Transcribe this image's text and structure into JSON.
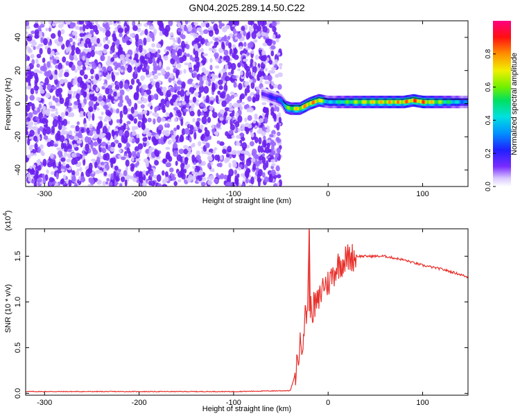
{
  "figure": {
    "title": "GN04.2025.289.14.50.C22"
  },
  "chart_data": [
    {
      "type": "heatmap",
      "xlabel": "Height of straight line (km)",
      "ylabel": "Frequency (Hz)",
      "xlim": [
        -320,
        148
      ],
      "ylim": [
        -50,
        50
      ],
      "x_ticks": [
        "-300",
        "-200",
        "-100",
        "0",
        "100"
      ],
      "x_tick_values": [
        -300,
        -200,
        -100,
        0,
        100
      ],
      "y_ticks": [
        "-40",
        "-20",
        "0",
        "20",
        "40"
      ],
      "y_tick_values": [
        -40,
        -20,
        0,
        20,
        40
      ],
      "colorbar": {
        "label": "Normalized spectral amplitude",
        "range": [
          0,
          1
        ],
        "ticks": [
          "0.0",
          "0.2",
          "0.4",
          "0.6",
          "0.8"
        ],
        "tick_values": [
          0,
          0.2,
          0.4,
          0.6,
          0.8
        ]
      },
      "noise_region_x": [
        -320,
        -50
      ],
      "signal_ridge": {
        "x": [
          -70,
          -50,
          -45,
          -40,
          -30,
          -20,
          -10,
          0,
          20,
          40,
          60,
          80,
          90,
          100,
          148
        ],
        "freq": [
          6,
          2,
          -2,
          -3,
          -3,
          0,
          2,
          1,
          1,
          1,
          1,
          1,
          2,
          1,
          1
        ],
        "amplitude": [
          0.15,
          0.3,
          0.55,
          0.7,
          0.8,
          0.85,
          0.85,
          0.4,
          0.6,
          0.75,
          0.8,
          0.85,
          0.9,
          0.9,
          0.3
        ]
      },
      "grid": false
    },
    {
      "type": "line",
      "xlabel": "Height of straight line (km)",
      "ylabel": "SNR (10 * v/v)",
      "y_multiplier": "(x10",
      "y_multiplier_exp": "4",
      "xlim": [
        -320,
        148
      ],
      "ylim": [
        -0.02,
        1.8
      ],
      "x_ticks": [
        "-300",
        "-200",
        "-100",
        "0",
        "100"
      ],
      "x_tick_values": [
        -300,
        -200,
        -100,
        0,
        100
      ],
      "y_ticks": [
        "0.0",
        "0.5",
        "1.0",
        "1.5"
      ],
      "y_tick_values": [
        0,
        0.5,
        1.0,
        1.5
      ],
      "series": [
        {
          "color": "#e8302b",
          "x": [
            -320,
            -100,
            -40,
            -35,
            -30,
            -27,
            -25,
            -22,
            -20,
            -19,
            -18,
            -15,
            -10,
            -5,
            0,
            5,
            10,
            20,
            30,
            40,
            50,
            60,
            80,
            100,
            120,
            140,
            148
          ],
          "y": [
            0.02,
            0.02,
            0.03,
            0.2,
            0.5,
            0.6,
            0.8,
            0.9,
            1.78,
            1.0,
            0.9,
            0.95,
            1.0,
            1.2,
            1.2,
            1.3,
            1.4,
            1.48,
            1.5,
            1.5,
            1.5,
            1.5,
            1.46,
            1.4,
            1.36,
            1.3,
            1.27
          ]
        }
      ],
      "grid": false
    }
  ]
}
